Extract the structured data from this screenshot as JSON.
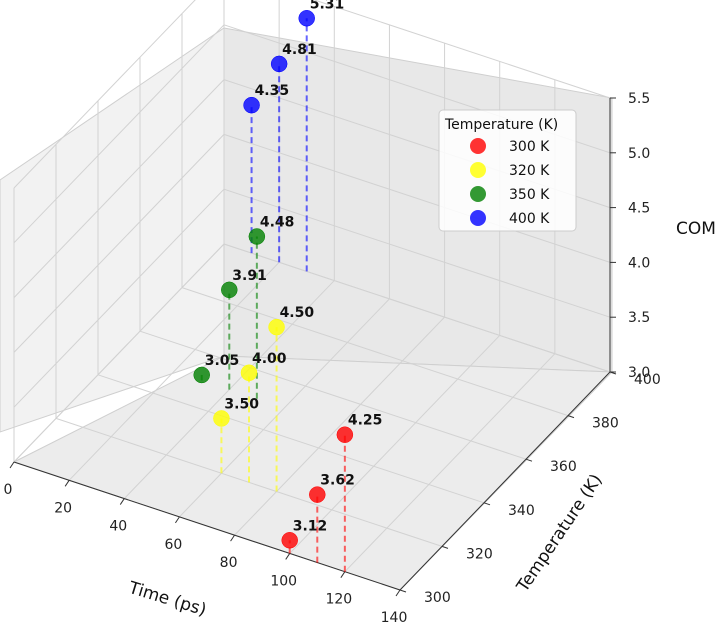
{
  "chart_data": {
    "type": "scatter",
    "projection": "3d",
    "x_label": "Time (ps)",
    "y_label": "Temperature (K)",
    "z_label": "COM",
    "x_ticks": [
      "0",
      "20",
      "40",
      "60",
      "80",
      "100",
      "120",
      "140"
    ],
    "y_ticks": [
      "300",
      "320",
      "340",
      "360",
      "380",
      "400"
    ],
    "z_ticks": [
      "3.0",
      "3.5",
      "4.0",
      "4.5",
      "5.0",
      "5.5"
    ],
    "xlim": [
      0,
      140
    ],
    "ylim": [
      300,
      400
    ],
    "zlim": [
      3.0,
      5.5
    ],
    "grid": true,
    "drop_lines": "dashed",
    "legend": {
      "title": "Temperature (K)",
      "position": "top-right"
    },
    "series": [
      {
        "name": "300 K",
        "color": "#ff0000",
        "points": [
          {
            "x": 100,
            "y": 300,
            "z": 3.12,
            "label": "3.12"
          },
          {
            "x": 110,
            "y": 300,
            "z": 3.62,
            "label": "3.62"
          },
          {
            "x": 120,
            "y": 300,
            "z": 4.25,
            "label": "4.25"
          }
        ]
      },
      {
        "name": "320 K",
        "color": "#ffff00",
        "points": [
          {
            "x": 60,
            "y": 320,
            "z": 3.5,
            "label": "3.50"
          },
          {
            "x": 70,
            "y": 320,
            "z": 4.0,
            "label": "4.00"
          },
          {
            "x": 80,
            "y": 320,
            "z": 4.5,
            "label": "4.50"
          }
        ]
      },
      {
        "name": "350 K",
        "color": "#008000",
        "points": [
          {
            "x": 30,
            "y": 350,
            "z": 3.05,
            "label": "3.05"
          },
          {
            "x": 40,
            "y": 350,
            "z": 3.91,
            "label": "3.91"
          },
          {
            "x": 50,
            "y": 350,
            "z": 4.48,
            "label": "4.48"
          }
        ]
      },
      {
        "name": "400 K",
        "color": "#0000ff",
        "points": [
          {
            "x": 10,
            "y": 400,
            "z": 4.35,
            "label": "4.35"
          },
          {
            "x": 20,
            "y": 400,
            "z": 4.81,
            "label": "4.81"
          },
          {
            "x": 30,
            "y": 400,
            "z": 5.31,
            "label": "5.31"
          }
        ]
      }
    ]
  }
}
